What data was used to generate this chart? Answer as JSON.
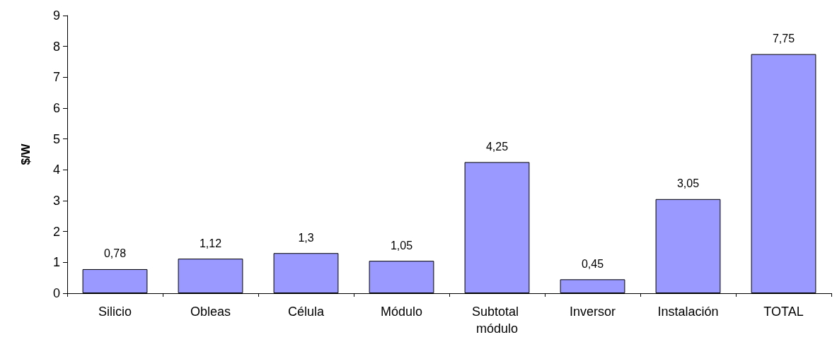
{
  "chart_data": {
    "type": "bar",
    "ylabel": "$/W",
    "categories": [
      "Silicio",
      "Obleas",
      "Célula",
      "Módulo",
      "Subtotal módulo",
      "Inversor",
      "Instalación",
      "TOTAL"
    ],
    "values": [
      0.78,
      1.12,
      1.3,
      1.05,
      4.25,
      0.45,
      3.05,
      7.75
    ],
    "value_labels": [
      "0,78",
      "1,12",
      "1,3",
      "1,05",
      "4,25",
      "0,45",
      "3,05",
      "7,75"
    ],
    "color": "#9999ff",
    "ylim": [
      0,
      9
    ],
    "yticks": [
      0,
      1,
      2,
      3,
      4,
      5,
      6,
      7,
      8,
      9
    ],
    "grid": false
  }
}
